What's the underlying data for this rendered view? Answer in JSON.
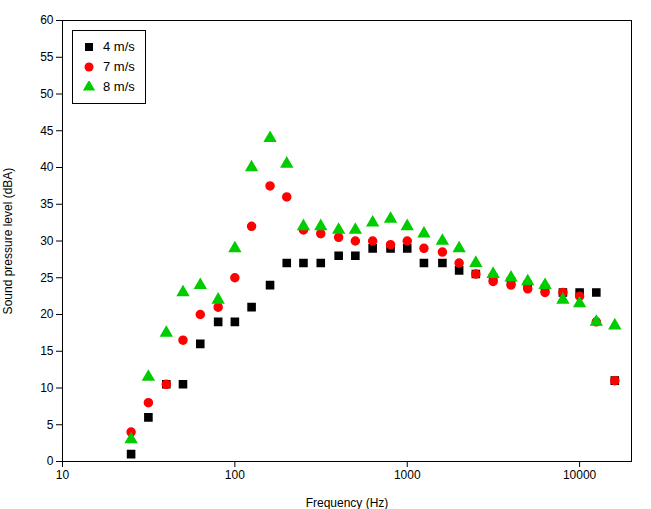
{
  "chart_data": {
    "type": "scatter",
    "xlabel": "Frequency (Hz)",
    "ylabel": "Sound pressure level (dBA)",
    "log": "x",
    "grid": false,
    "legend": "upper left",
    "xlim": [
      10,
      20000
    ],
    "ylim": [
      0,
      60
    ],
    "xticks": [
      10,
      100,
      1000,
      10000
    ],
    "yticks": [
      0,
      5,
      10,
      15,
      20,
      25,
      30,
      35,
      40,
      45,
      50,
      55,
      60
    ],
    "x": [
      25,
      31.5,
      40,
      50,
      63,
      80,
      100,
      125,
      160,
      200,
      250,
      315,
      400,
      500,
      630,
      800,
      1000,
      1250,
      1600,
      2000,
      2500,
      3150,
      4000,
      5000,
      6300,
      8000,
      10000,
      12500,
      16000
    ],
    "series": [
      {
        "name": "4 m/s",
        "color": "#000000",
        "marker": "square",
        "values": [
          1.0,
          6.0,
          10.5,
          10.5,
          16.0,
          19.0,
          19.0,
          21.0,
          24.0,
          27.0,
          27.0,
          27.0,
          28.0,
          28.0,
          29.0,
          29.0,
          29.0,
          27.0,
          27.0,
          26.0,
          25.5,
          25.0,
          24.5,
          24.0,
          23.5,
          23.0,
          23.0,
          23.0,
          11.0
        ]
      },
      {
        "name": "7 m/s",
        "color": "#ff0000",
        "marker": "circle",
        "values": [
          4.0,
          8.0,
          10.5,
          16.5,
          20.0,
          21.0,
          25.0,
          32.0,
          37.5,
          36.0,
          31.5,
          31.0,
          30.5,
          30.0,
          30.0,
          29.5,
          30.0,
          29.0,
          28.5,
          27.0,
          25.5,
          24.5,
          24.0,
          23.5,
          23.0,
          23.0,
          22.5,
          19.0,
          11.0
        ]
      },
      {
        "name": "8 m/s",
        "color": "#00cc00",
        "marker": "triangle",
        "values": [
          3.0,
          11.5,
          17.5,
          23.0,
          24.0,
          22.0,
          29.0,
          40.0,
          44.0,
          40.5,
          32.0,
          32.0,
          31.5,
          31.5,
          32.5,
          33.0,
          32.0,
          31.0,
          30.0,
          29.0,
          27.0,
          25.5,
          25.0,
          24.5,
          24.0,
          22.0,
          21.5,
          19.0,
          18.5
        ]
      }
    ]
  }
}
